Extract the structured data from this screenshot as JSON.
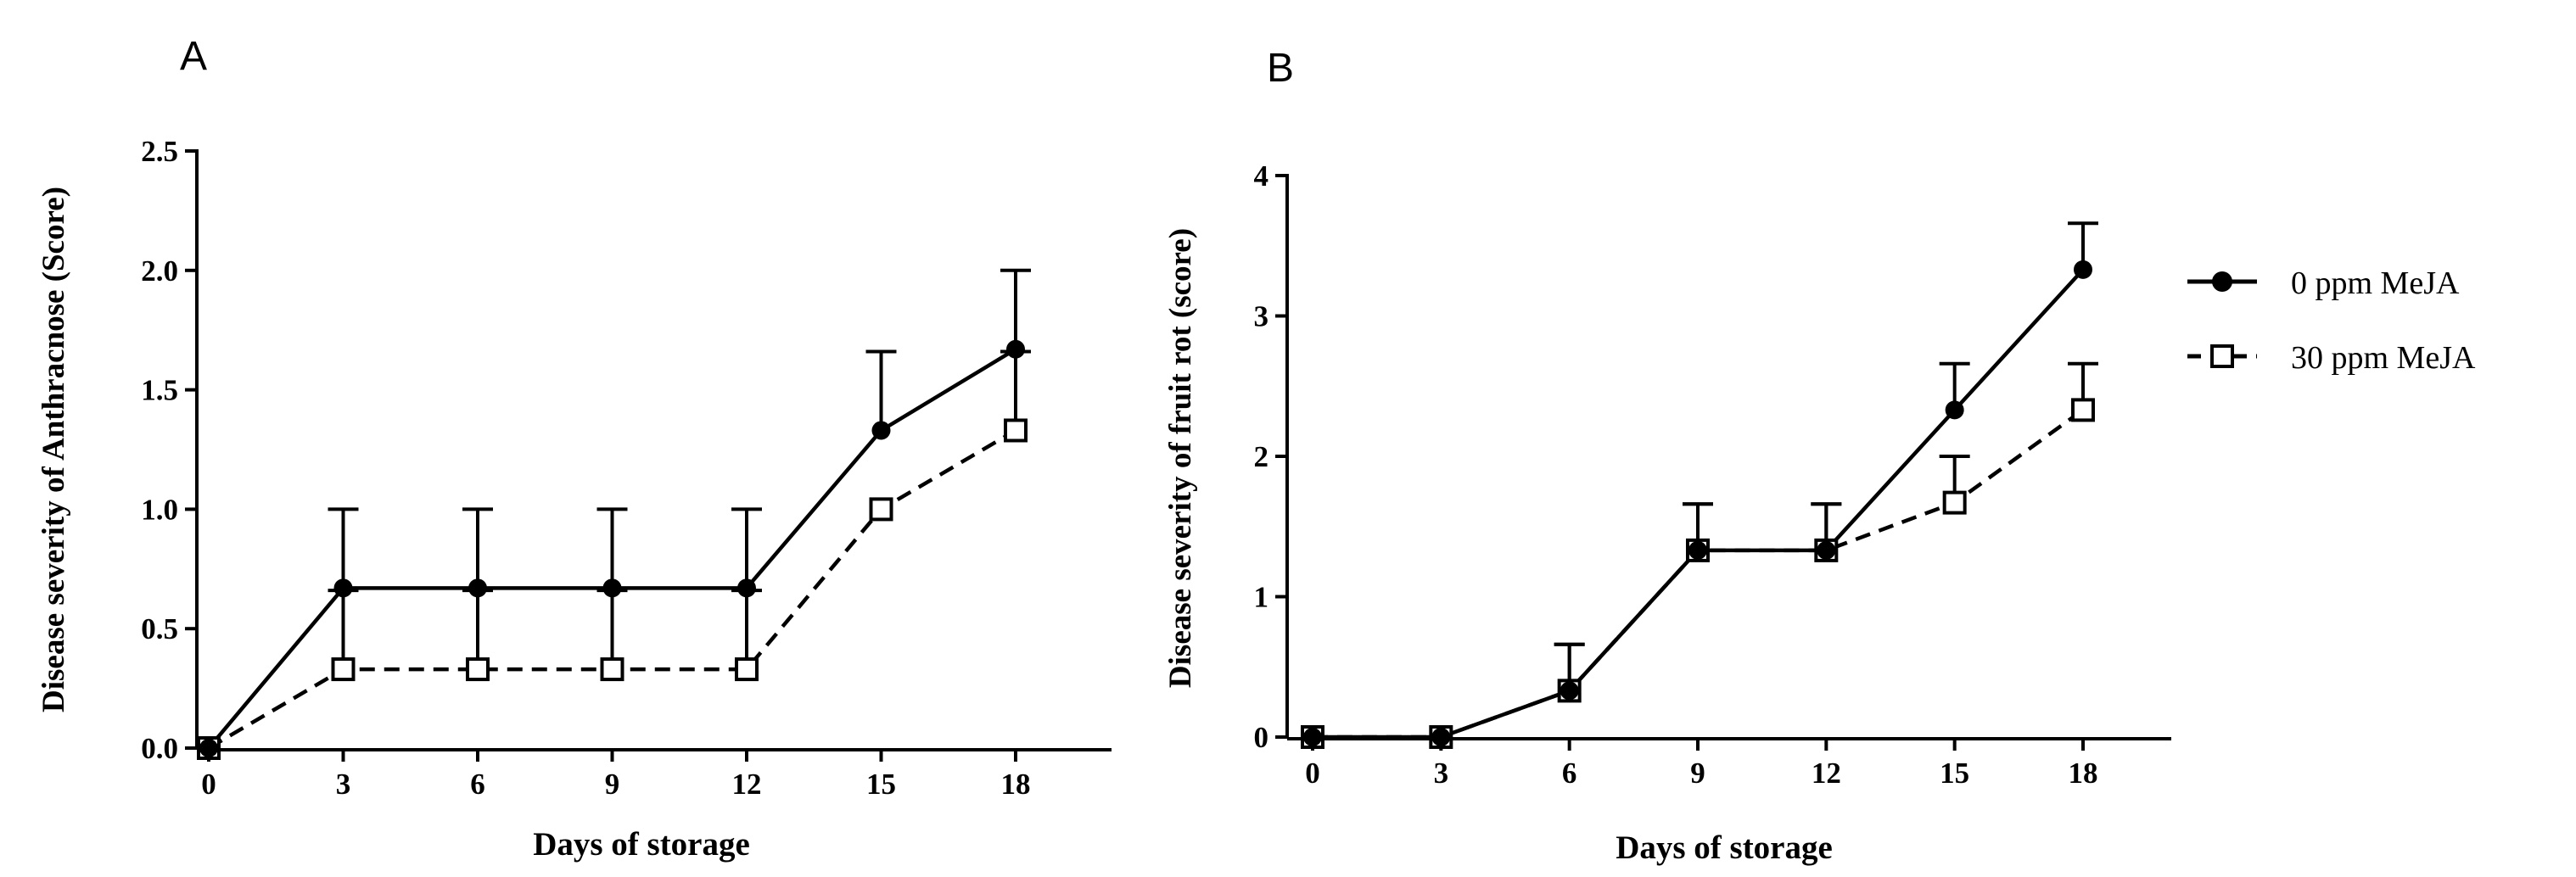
{
  "chart_data": [
    {
      "type": "line",
      "panel_label": "A",
      "title": "",
      "xlabel": "Days of storage",
      "ylabel": "Disease severity of Anthracnose (Score)",
      "x": [
        0,
        3,
        6,
        9,
        12,
        15,
        18
      ],
      "xticks": [
        "0",
        "3",
        "6",
        "9",
        "12",
        "15",
        "18"
      ],
      "yticks": [
        "0.0",
        "0.5",
        "1.0",
        "1.5",
        "2.0",
        "2.5"
      ],
      "ylim": [
        0,
        2.5
      ],
      "series": [
        {
          "name": "0 ppm MeJA",
          "values": [
            0,
            0.67,
            0.67,
            0.67,
            0.67,
            1.33,
            1.67
          ],
          "errors": [
            0,
            0.33,
            0.33,
            0.33,
            0.33,
            0.33,
            0.33
          ],
          "marker": "filled-circle",
          "line": "solid"
        },
        {
          "name": "30 ppm MeJA",
          "values": [
            0,
            0.33,
            0.33,
            0.33,
            0.33,
            1.0,
            1.33
          ],
          "errors": [
            0,
            0.33,
            0.33,
            0.33,
            0.33,
            0,
            0.33
          ],
          "marker": "open-square",
          "line": "dashed"
        }
      ]
    },
    {
      "type": "line",
      "panel_label": "B",
      "title": "",
      "xlabel": "Days of storage",
      "ylabel": "Disease severity of fruit rot (score)",
      "x": [
        0,
        3,
        6,
        9,
        12,
        15,
        18
      ],
      "xticks": [
        "0",
        "3",
        "6",
        "9",
        "12",
        "15",
        "18"
      ],
      "yticks": [
        "0",
        "1",
        "2",
        "3",
        "4"
      ],
      "ylim": [
        0,
        4
      ],
      "series": [
        {
          "name": "0 ppm MeJA",
          "values": [
            0,
            0,
            0.33,
            1.33,
            1.33,
            2.33,
            3.33
          ],
          "errors": [
            0,
            0,
            0.33,
            0.33,
            0.33,
            0.33,
            0.33
          ],
          "marker": "filled-circle",
          "line": "solid"
        },
        {
          "name": "30 ppm MeJA",
          "values": [
            0,
            0,
            0.33,
            1.33,
            1.33,
            1.67,
            2.33
          ],
          "errors": [
            0,
            0,
            0.33,
            0.33,
            0.33,
            0.33,
            0.33
          ],
          "marker": "open-square",
          "line": "dashed"
        }
      ]
    }
  ],
  "legend": {
    "position": "right",
    "items": [
      {
        "label": "0 ppm MeJA",
        "marker": "filled-circle",
        "line": "solid"
      },
      {
        "label": "30 ppm MeJA",
        "marker": "open-square",
        "line": "dashed"
      }
    ]
  }
}
